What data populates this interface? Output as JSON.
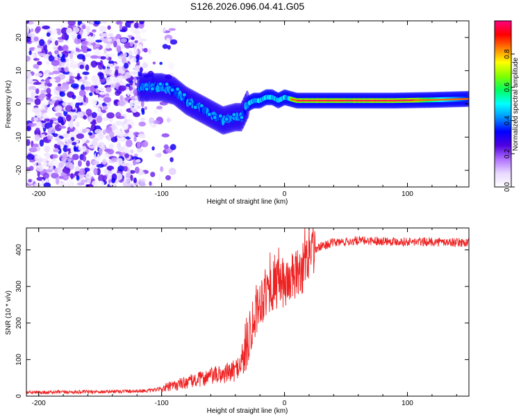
{
  "title": "S126.2026.096.04.41.G05",
  "chart_data": [
    {
      "type": "heatmap",
      "name": "spectrogram",
      "xlabel": "Height of straight line (km)",
      "ylabel": "Frequency (Hz)",
      "xlim": [
        -210,
        150
      ],
      "ylim": [
        -25,
        25
      ],
      "xticks": [
        -200,
        -100,
        0,
        100
      ],
      "yticks": [
        -20,
        -10,
        0,
        10,
        20
      ],
      "colorbar": {
        "label": "Normalized spectral amplitude",
        "range": [
          0.0,
          1.0
        ],
        "ticks": [
          0.0,
          0.2,
          0.4,
          0.6,
          0.8
        ],
        "colors": [
          "#ffffff",
          "#e8d8ff",
          "#b070ff",
          "#5000e0",
          "#0000ff",
          "#0090ff",
          "#00ffff",
          "#00ff60",
          "#80ff00",
          "#ffff00",
          "#ff8000",
          "#ff0000",
          "#ff0080"
        ]
      },
      "ridge": {
        "x": [
          -115,
          -100,
          -90,
          -80,
          -70,
          -60,
          -50,
          -40,
          -35,
          -30,
          -25,
          -20,
          -15,
          -10,
          -5,
          0,
          10,
          30,
          60,
          90,
          120,
          150
        ],
        "y": [
          5,
          5,
          4,
          1,
          -1,
          -3,
          -5,
          -4,
          -4,
          0,
          1,
          1,
          2,
          2,
          1,
          2,
          1,
          1,
          1,
          1,
          1.2,
          1.5
        ]
      }
    },
    {
      "type": "line",
      "name": "snr",
      "xlabel": "Height of straight line (km)",
      "ylabel": "SNR (10 * v/v)",
      "xlim": [
        -210,
        150
      ],
      "ylim": [
        0,
        460
      ],
      "xticks": [
        -200,
        -100,
        0,
        100
      ],
      "yticks": [
        0,
        100,
        200,
        300,
        400
      ],
      "color": "#ee2222",
      "envelope": {
        "x": [
          -210,
          -150,
          -110,
          -100,
          -90,
          -80,
          -70,
          -60,
          -50,
          -40,
          -35,
          -30,
          -25,
          -20,
          -15,
          -10,
          -5,
          0,
          5,
          10,
          15,
          20,
          25,
          30,
          40,
          60,
          80,
          100,
          120,
          150
        ],
        "y": [
          10,
          12,
          15,
          20,
          28,
          38,
          45,
          55,
          60,
          70,
          95,
          150,
          220,
          260,
          285,
          300,
          305,
          310,
          320,
          330,
          350,
          380,
          400,
          410,
          420,
          425,
          425,
          422,
          422,
          420
        ]
      }
    }
  ]
}
